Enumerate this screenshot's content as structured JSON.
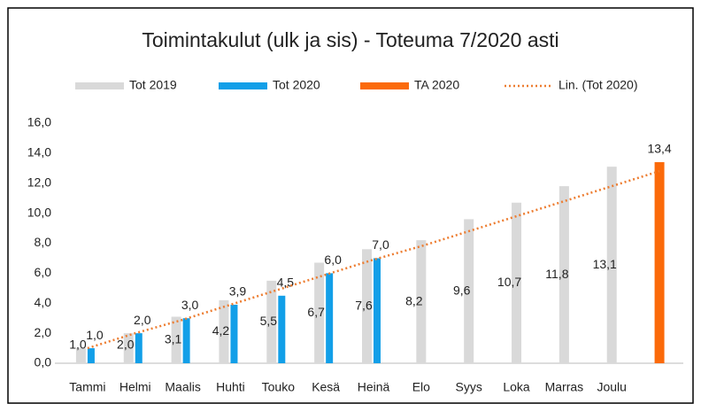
{
  "chart_data": {
    "type": "bar",
    "title": "Toimintakulut  (ulk ja sis) - Toteuma 7/2020 asti",
    "categories": [
      "Tammi",
      "Helmi",
      "Maalis",
      "Huhti",
      "Touko",
      "Kesä",
      "Heinä",
      "Elo",
      "Syys",
      "Loka",
      "Marras",
      "Joulu",
      null
    ],
    "series": [
      {
        "name": "Tot 2019",
        "color": "#d9d9d9",
        "values": [
          1.0,
          2.0,
          3.1,
          4.2,
          5.5,
          6.7,
          7.6,
          8.2,
          9.6,
          10.7,
          11.8,
          13.1,
          null
        ],
        "value_labels": [
          "1,0",
          "2,0",
          "3,1",
          "4,2",
          "5,5",
          "6,7",
          "7,6",
          "8,2",
          "9,6",
          "10,7",
          "11,8",
          "13,1",
          null
        ]
      },
      {
        "name": "Tot 2020",
        "color": "#129fe8",
        "values": [
          1.0,
          2.0,
          3.0,
          3.9,
          4.5,
          6.0,
          7.0,
          null,
          null,
          null,
          null,
          null,
          null
        ],
        "value_labels": [
          "1,0",
          "2,0",
          "3,0",
          "3,9",
          "4,5",
          "6,0",
          "7,0",
          null,
          null,
          null,
          null,
          null,
          null
        ]
      },
      {
        "name": "TA 2020",
        "color": "#fb6a0a",
        "values": [
          null,
          null,
          null,
          null,
          null,
          null,
          null,
          null,
          null,
          null,
          null,
          null,
          13.4
        ],
        "value_labels": [
          null,
          null,
          null,
          null,
          null,
          null,
          null,
          null,
          null,
          null,
          null,
          null,
          "13,4"
        ]
      },
      {
        "name": "Lin. (Tot 2020)",
        "color": "#ed7d31",
        "line": "dotted",
        "values": [
          1.0,
          2.0,
          2.9,
          3.9,
          4.9,
          5.9,
          6.9,
          7.8,
          8.8,
          9.8,
          10.8,
          11.8,
          12.8
        ]
      }
    ],
    "ylim": [
      0,
      16
    ],
    "yticks": [
      {
        "value": 0,
        "label": "0,0"
      },
      {
        "value": 2,
        "label": "2,0"
      },
      {
        "value": 4,
        "label": "4,0"
      },
      {
        "value": 6,
        "label": "6,0"
      },
      {
        "value": 8,
        "label": "8,0"
      },
      {
        "value": 10,
        "label": "10,0"
      },
      {
        "value": 12,
        "label": "12,0"
      },
      {
        "value": 14,
        "label": "14,0"
      },
      {
        "value": 16,
        "label": "16,0"
      }
    ],
    "grid": false,
    "legend": "top"
  }
}
